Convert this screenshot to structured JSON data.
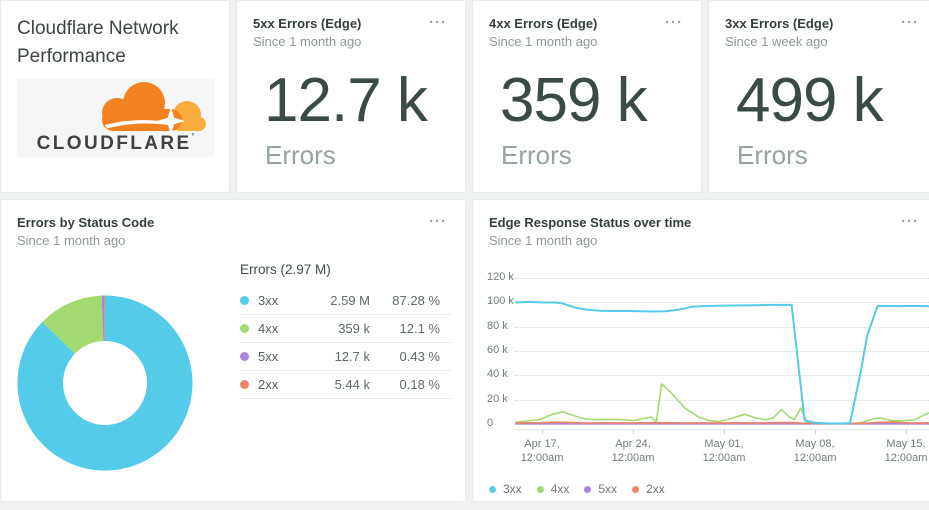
{
  "colors": {
    "cyan": "#53cbe9",
    "green": "#a2da71",
    "purple": "#ae84da",
    "orange": "#ef8365",
    "page_bg": "#eff1f1",
    "card_bg": "#ffffff",
    "brand_orange": "#f48120",
    "brand_orange_light": "#faad3f"
  },
  "icons": {
    "ellipsis": "···"
  },
  "title_card": {
    "title": "Cloudflare Network Performance",
    "logo_text": "CLOUDFLARE",
    "logo_mark": "’"
  },
  "stat_cards": [
    {
      "title": "5xx Errors (Edge)",
      "subtitle": "Since 1 month ago",
      "value": "12.7 k",
      "unit": "Errors"
    },
    {
      "title": "4xx Errors (Edge)",
      "subtitle": "Since 1 month ago",
      "value": "359 k",
      "unit": "Errors"
    },
    {
      "title": "3xx Errors (Edge)",
      "subtitle": "Since 1 week ago",
      "value": "499 k",
      "unit": "Errors"
    }
  ],
  "chart_data": [
    {
      "type": "pie",
      "title": "Errors by Status Code",
      "subtitle": "Since 1 month ago",
      "legend_title": "Errors (2.97 M)",
      "total": "2.97 M",
      "donut": true,
      "segments": [
        {
          "label": "3xx",
          "value": "2.59 M",
          "pct": 87.28,
          "pct_label": "87.28 %",
          "color": "#53cbe9"
        },
        {
          "label": "4xx",
          "value": "359 k",
          "pct": 12.1,
          "pct_label": "12.1 %",
          "color": "#a2da71"
        },
        {
          "label": "5xx",
          "value": "12.7 k",
          "pct": 0.43,
          "pct_label": "0.43 %",
          "color": "#ae84da"
        },
        {
          "label": "2xx",
          "value": "5.44 k",
          "pct": 0.18,
          "pct_label": "0.18 %",
          "color": "#ef8365"
        }
      ]
    },
    {
      "type": "line",
      "title": "Edge Response Status over time",
      "subtitle": "Since 1 month ago",
      "grid": "dotted",
      "legend_position": "bottom",
      "y_unit": "k",
      "ylim_k": [
        0,
        120
      ],
      "y_ticks": [
        "120 k",
        "100 k",
        "80 k",
        "60 k",
        "40 k",
        "20 k",
        "0"
      ],
      "x_domain_days": [
        0,
        32.5
      ],
      "x_ticks": [
        {
          "day": 2,
          "line1": "Apr 17,",
          "line2": "12:00am"
        },
        {
          "day": 9,
          "line1": "Apr 24,",
          "line2": "12:00am"
        },
        {
          "day": 16,
          "line1": "May 01,",
          "line2": "12:00am"
        },
        {
          "day": 23,
          "line1": "May 08,",
          "line2": "12:00am"
        },
        {
          "day": 30,
          "line1": "May 15,",
          "line2": "12:00am"
        }
      ],
      "series": [
        {
          "name": "3xx",
          "color": "#53cbe9",
          "points_k": [
            [
              0,
              100
            ],
            [
              1,
              100.5
            ],
            [
              2,
              100
            ],
            [
              3,
              100
            ],
            [
              3.5,
              99.5
            ],
            [
              4.5,
              96
            ],
            [
              5.5,
              94
            ],
            [
              6.5,
              93.2
            ],
            [
              7.5,
              93
            ],
            [
              8.5,
              93
            ],
            [
              9.5,
              92.8
            ],
            [
              10.5,
              92.6
            ],
            [
              11.5,
              92.8
            ],
            [
              12.5,
              94
            ],
            [
              13.5,
              96.5
            ],
            [
              14.5,
              97
            ],
            [
              15.5,
              97.3
            ],
            [
              16.5,
              97.5
            ],
            [
              17.5,
              97.6
            ],
            [
              18.5,
              97.8
            ],
            [
              19.5,
              98
            ],
            [
              20.5,
              98
            ],
            [
              21.2,
              98
            ],
            [
              22.2,
              3
            ],
            [
              23,
              1
            ],
            [
              24,
              0.5
            ],
            [
              25,
              0.4
            ],
            [
              25.7,
              0.8
            ],
            [
              26.5,
              42
            ],
            [
              27,
              72
            ],
            [
              27.8,
              97
            ],
            [
              28.5,
              97.2
            ],
            [
              29.5,
              97
            ],
            [
              30.5,
              97.2
            ],
            [
              31.5,
              97
            ],
            [
              32.5,
              96.5
            ]
          ]
        },
        {
          "name": "4xx",
          "color": "#a2da71",
          "points_k": [
            [
              0,
              1.5
            ],
            [
              0.8,
              2.5
            ],
            [
              1.8,
              3.5
            ],
            [
              2.8,
              8
            ],
            [
              3.6,
              10
            ],
            [
              4.4,
              7
            ],
            [
              5.2,
              4.5
            ],
            [
              6,
              3.5
            ],
            [
              7,
              3.8
            ],
            [
              8,
              3.6
            ],
            [
              9,
              2.8
            ],
            [
              9.8,
              4.5
            ],
            [
              10.4,
              5.8
            ],
            [
              10.8,
              1.5
            ],
            [
              11.2,
              33
            ],
            [
              12,
              25
            ],
            [
              13,
              13
            ],
            [
              14,
              6
            ],
            [
              14.8,
              3
            ],
            [
              15.6,
              2
            ],
            [
              16.4,
              4
            ],
            [
              17,
              6
            ],
            [
              17.6,
              8
            ],
            [
              18.4,
              5
            ],
            [
              19.2,
              3.5
            ],
            [
              19.8,
              5
            ],
            [
              20.4,
              12
            ],
            [
              21,
              6
            ],
            [
              21.4,
              3.5
            ],
            [
              21.9,
              13
            ],
            [
              22.4,
              1.5
            ],
            [
              23.2,
              0.4
            ],
            [
              24,
              0.3
            ],
            [
              25,
              0.3
            ],
            [
              25.8,
              0.4
            ],
            [
              26.6,
              1.2
            ],
            [
              27.4,
              4
            ],
            [
              28,
              5
            ],
            [
              28.8,
              3
            ],
            [
              29.6,
              2.6
            ],
            [
              30.6,
              3.2
            ],
            [
              31.5,
              8
            ],
            [
              32.5,
              13
            ]
          ]
        },
        {
          "name": "5xx",
          "color": "#ae84da",
          "points_k": [
            [
              0,
              0.15
            ],
            [
              32.5,
              0.15
            ]
          ]
        },
        {
          "name": "2xx",
          "color": "#ef8365",
          "points_k": [
            [
              0,
              0.9
            ],
            [
              1,
              1
            ],
            [
              2,
              1.1
            ],
            [
              3,
              1.5
            ],
            [
              4,
              1.3
            ],
            [
              5,
              1
            ],
            [
              6,
              0.9
            ],
            [
              7,
              0.9
            ],
            [
              8,
              0.9
            ],
            [
              9,
              0.9
            ],
            [
              10,
              0.9
            ],
            [
              11,
              1.1
            ],
            [
              12,
              1
            ],
            [
              13,
              0.9
            ],
            [
              14,
              0.9
            ],
            [
              15,
              0.9
            ],
            [
              16,
              0.9
            ],
            [
              17,
              1
            ],
            [
              18,
              0.9
            ],
            [
              19,
              0.9
            ],
            [
              20,
              1.1
            ],
            [
              21,
              1.3
            ],
            [
              22,
              0.7
            ],
            [
              23,
              0.4
            ],
            [
              24,
              0.4
            ],
            [
              25,
              0.4
            ],
            [
              26,
              0.5
            ],
            [
              27,
              0.8
            ],
            [
              28,
              1.4
            ],
            [
              29,
              1.6
            ],
            [
              30,
              1
            ],
            [
              31,
              0.9
            ],
            [
              32.5,
              0.9
            ]
          ]
        }
      ]
    }
  ]
}
